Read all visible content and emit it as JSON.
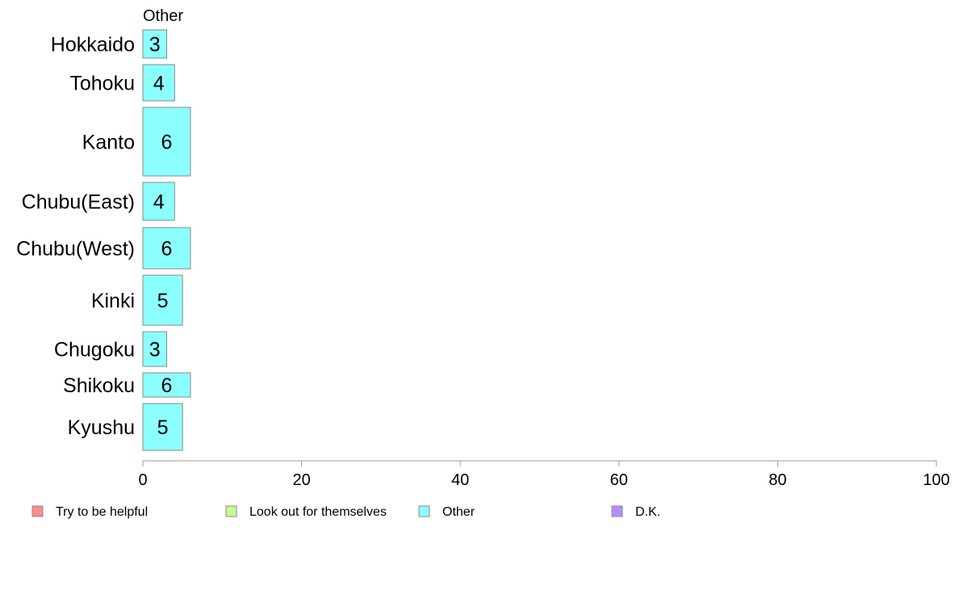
{
  "chart_data": {
    "type": "bar",
    "orientation": "horizontal",
    "stacked": true,
    "header": "Other",
    "categories": [
      "Hokkaido",
      "Tohoku",
      "Kanto",
      "Chubu(East)",
      "Chubu(West)",
      "Kinki",
      "Chugoku",
      "Shikoku",
      "Kyushu"
    ],
    "series": [
      {
        "name": "Other",
        "color": "#8cffff",
        "values": [
          3,
          4,
          6,
          4,
          6,
          5,
          3,
          6,
          5
        ]
      }
    ],
    "xlim": [
      0,
      100
    ],
    "xticks": [
      0,
      20,
      40,
      60,
      80,
      100
    ],
    "grid": false,
    "legend_position": "bottom",
    "legend": [
      {
        "label": "Try to be helpful",
        "color": "#ff8c8c"
      },
      {
        "label": "Look out for themselves",
        "color": "#c8ff8c"
      },
      {
        "label": "Other",
        "color": "#8cffff"
      },
      {
        "label": "D.K.",
        "color": "#b88cff"
      }
    ],
    "bar_border_color": "#8a8a8a",
    "axis_color": "#9a9a9a"
  }
}
